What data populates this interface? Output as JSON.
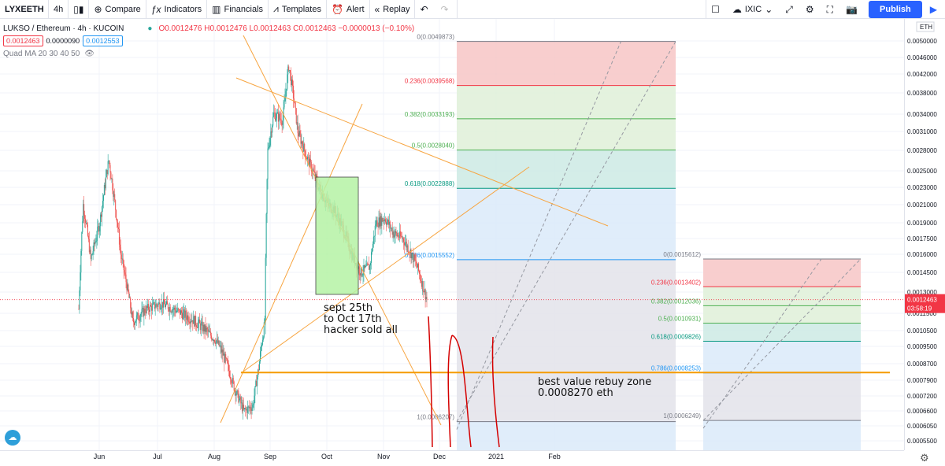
{
  "toolbar": {
    "symbol": "LYXEETH",
    "interval": "4h",
    "compare": "Compare",
    "indicators": "Indicators",
    "financials": "Financials",
    "templates": "Templates",
    "alert": "Alert",
    "replay": "Replay",
    "layout_name": "IXIC",
    "publish": "Publish"
  },
  "legend": {
    "title": "LUKSO / Ethereum · 4h · KUCOIN",
    "ohlc": "O0.0012476 H0.0012476 L0.0012463 C0.0012463 −0.0000013 (−0.10%)",
    "bid": "0.0012463",
    "spread": "0.0000090",
    "ask": "0.0012553",
    "indicator": "Quad MA 20 30 40 50"
  },
  "colors": {
    "up": "#26a69a",
    "down": "#ef5350",
    "orange": "#f7a541",
    "rebuy_line": "#f59b00",
    "annotation_red": "#d40000",
    "current_price": "#f23645"
  },
  "axis": {
    "currency": "ETH",
    "current_price": "0.0012463",
    "countdown": "03:58:19"
  },
  "chart_data": {
    "type": "candlestick",
    "x_labels": [
      "Jun",
      "Jul",
      "Aug",
      "Sep",
      "Oct",
      "Nov",
      "Dec",
      "2021",
      "Feb"
    ],
    "y_ticks": [
      0.005,
      0.0046,
      0.0042,
      0.0038,
      0.0034,
      0.0031,
      0.0028,
      0.0025,
      0.0023,
      0.0021,
      0.0019,
      0.00175,
      0.0016,
      0.00145,
      0.0013,
      0.00115,
      0.00105,
      0.00095,
      0.00087,
      0.00079,
      0.00072,
      0.00066,
      0.000605,
      0.00055
    ],
    "price_path": [
      [
        0,
        0.00118
      ],
      [
        3,
        0.0021
      ],
      [
        8,
        0.00155
      ],
      [
        14,
        0.0019
      ],
      [
        20,
        0.00265
      ],
      [
        28,
        0.0016
      ],
      [
        36,
        0.0011
      ],
      [
        45,
        0.00118
      ],
      [
        55,
        0.00122
      ],
      [
        65,
        0.00117
      ],
      [
        75,
        0.00112
      ],
      [
        85,
        0.00105
      ],
      [
        92,
        0.00098
      ],
      [
        98,
        0.00088
      ],
      [
        104,
        0.00075
      ],
      [
        110,
        0.00066
      ],
      [
        116,
        0.00068
      ],
      [
        120,
        0.00085
      ],
      [
        124,
        0.0011
      ],
      [
        126,
        0.0028
      ],
      [
        130,
        0.0034
      ],
      [
        136,
        0.0033
      ],
      [
        140,
        0.0044
      ],
      [
        146,
        0.0031
      ],
      [
        152,
        0.0027
      ],
      [
        160,
        0.0023
      ],
      [
        166,
        0.0021
      ],
      [
        170,
        0.00205
      ],
      [
        176,
        0.00185
      ],
      [
        182,
        0.0016
      ],
      [
        188,
        0.00145
      ],
      [
        194,
        0.0015
      ],
      [
        198,
        0.0019
      ],
      [
        204,
        0.00195
      ],
      [
        210,
        0.0018
      ],
      [
        216,
        0.00175
      ],
      [
        222,
        0.0016
      ],
      [
        226,
        0.00148
      ],
      [
        230,
        0.00132
      ],
      [
        232,
        0.00125
      ]
    ],
    "fib_retracement_1": {
      "levels": [
        {
          "ratio": "0",
          "label": "0(0.0049873)",
          "price": 0.0049873,
          "fill": "#f7c6c5"
        },
        {
          "ratio": "0.236",
          "label": "0.236(0.0039568)",
          "price": 0.0039568,
          "fill": "#dff0d8"
        },
        {
          "ratio": "0.382",
          "label": "0.382(0.0033193)",
          "price": 0.0033193,
          "fill": "#dff0d8"
        },
        {
          "ratio": "0.5",
          "label": "0.5(0.0028040)",
          "price": 0.002804,
          "fill": "#cdeae4"
        },
        {
          "ratio": "0.618",
          "label": "0.618(0.0022888)",
          "price": 0.0022888,
          "fill": "#dbeaf9"
        },
        {
          "ratio": "0.786",
          "label": "0.786(0.0015552)",
          "price": 0.0015552,
          "fill": "#e3e3ea"
        },
        {
          "ratio": "1",
          "label": "1(0.0006207)",
          "price": 0.0006207,
          "fill": "#dbeaf9"
        }
      ]
    },
    "fib_retracement_2": {
      "levels": [
        {
          "ratio": "0",
          "label": "0(0.0015612)",
          "price": 0.0015612,
          "fill": "#f7c6c5"
        },
        {
          "ratio": "0.236",
          "label": "0.236(0.0013402)",
          "price": 0.0013402,
          "fill": "#dff0d8"
        },
        {
          "ratio": "0.382",
          "label": "0.382(0.0012036)",
          "price": 0.0012036,
          "fill": "#dff0d8"
        },
        {
          "ratio": "0.5",
          "label": "0.5(0.0010931)",
          "price": 0.0010931,
          "fill": "#cdeae4"
        },
        {
          "ratio": "0.618",
          "label": "0.618(0.0009826)",
          "price": 0.0009826,
          "fill": "#dbeaf9"
        },
        {
          "ratio": "0.786",
          "label": "0.786(0.0008253)",
          "price": 0.0008253,
          "fill": "#e3e3ea"
        },
        {
          "ratio": "1",
          "label": "1(0.0006249)",
          "price": 0.0006249,
          "fill": "#dbeaf9"
        }
      ]
    },
    "annotations": {
      "hack_window": [
        "sept 25th",
        "to Oct 17th",
        "hacker sold all"
      ],
      "rebuy_zone": [
        "best value rebuy zone",
        "0.0008270 eth"
      ]
    },
    "rebuy_price": 0.000827
  }
}
